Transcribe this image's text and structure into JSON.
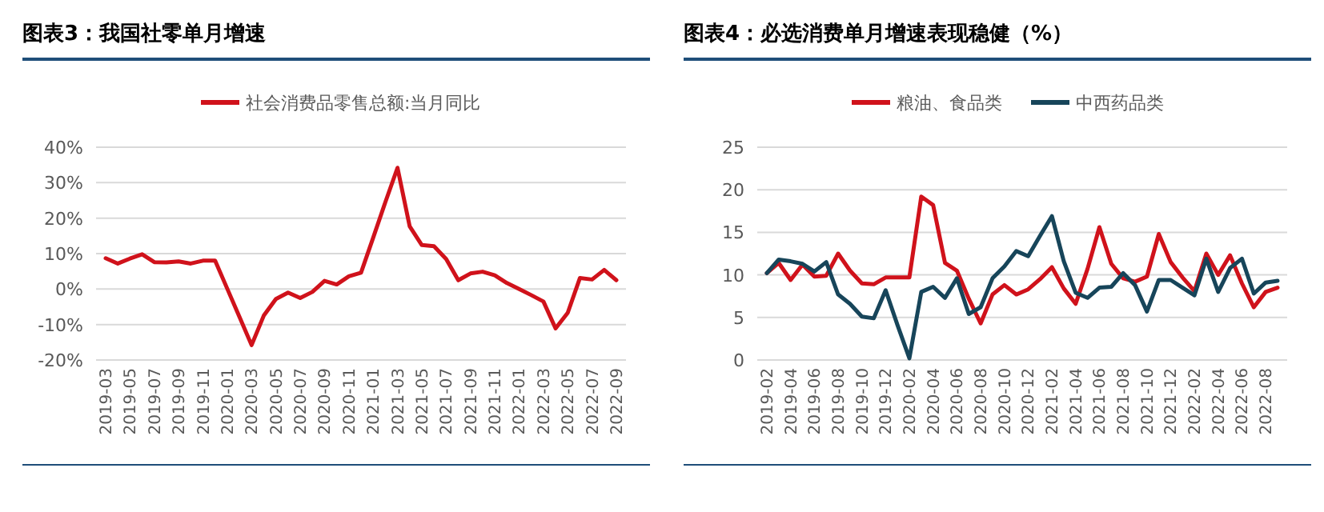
{
  "chart_data": [
    {
      "type": "line",
      "title": "图表3：我国社零单月增速",
      "categories": [
        "2019-03",
        null,
        "2019-05",
        null,
        "2019-07",
        null,
        "2019-09",
        null,
        "2019-11",
        null,
        "2020-01",
        null,
        "2020-03",
        null,
        "2020-05",
        null,
        "2020-07",
        null,
        "2020-09",
        null,
        "2020-11",
        null,
        "2021-01",
        null,
        "2021-03",
        null,
        "2021-05",
        null,
        "2021-07",
        null,
        "2021-09",
        null,
        "2021-11",
        null,
        "2022-01",
        null,
        "2022-03",
        null,
        "2022-05",
        null,
        "2022-07",
        null,
        "2022-09"
      ],
      "series": [
        {
          "name": "社会消费品零售总额:当月同比",
          "color": "#d0121b",
          "values": [
            8.7,
            7.2,
            8.6,
            9.8,
            7.6,
            7.5,
            7.8,
            7.2,
            8.0,
            8.0,
            0.1,
            -7.8,
            -15.8,
            -7.5,
            -2.8,
            -1.0,
            -2.5,
            -0.8,
            2.3,
            1.3,
            3.6,
            4.6,
            14.5,
            24.5,
            34.2,
            17.7,
            12.4,
            12.1,
            8.5,
            2.5,
            4.4,
            4.9,
            3.9,
            1.7,
            0.0,
            -1.7,
            -3.5,
            -11.1,
            -6.7,
            3.1,
            2.7,
            5.4,
            2.5
          ]
        }
      ],
      "ylim": [
        -20,
        40
      ],
      "yticks": [
        {
          "value": -20,
          "label": "-20%"
        },
        {
          "value": -10,
          "label": "-10%"
        },
        {
          "value": 0,
          "label": "0%"
        },
        {
          "value": 10,
          "label": "10%"
        },
        {
          "value": 20,
          "label": "20%"
        },
        {
          "value": 30,
          "label": "30%"
        },
        {
          "value": 40,
          "label": "40%"
        }
      ],
      "grid": "y",
      "legend": "top"
    },
    {
      "type": "line",
      "title": "图表4：必选消费单月增速表现稳健（%）",
      "categories": [
        "2019-02",
        null,
        "2019-04",
        null,
        "2019-06",
        null,
        "2019-08",
        null,
        "2019-10",
        null,
        "2019-12",
        null,
        "2020-02",
        null,
        "2020-04",
        null,
        "2020-06",
        null,
        "2020-08",
        null,
        "2020-10",
        null,
        "2020-12",
        null,
        "2021-02",
        null,
        "2021-04",
        null,
        "2021-06",
        null,
        "2021-08",
        null,
        "2021-10",
        null,
        "2021-12",
        null,
        "2022-02",
        null,
        "2022-04",
        null,
        "2022-06",
        null,
        "2022-08",
        null
      ],
      "series": [
        {
          "name": "粮油、食品类",
          "color": "#d0121b",
          "values": [
            10.2,
            11.4,
            9.4,
            11.2,
            9.8,
            9.9,
            12.5,
            10.5,
            9.0,
            8.9,
            9.7,
            9.7,
            9.7,
            19.2,
            18.2,
            11.4,
            10.5,
            7.2,
            4.3,
            7.7,
            8.8,
            7.7,
            8.3,
            9.5,
            10.9,
            8.4,
            6.6,
            10.7,
            15.6,
            11.3,
            9.6,
            9.2,
            9.8,
            14.8,
            11.5,
            9.7,
            8.1,
            12.5,
            10.0,
            12.3,
            9.0,
            6.2,
            8.0,
            8.5
          ]
        },
        {
          "name": "中西药品类",
          "color": "#17455a",
          "values": [
            10.2,
            11.8,
            11.6,
            11.3,
            10.4,
            11.5,
            7.7,
            6.6,
            5.1,
            4.9,
            8.2,
            4.1,
            0.2,
            8.0,
            8.6,
            7.3,
            9.6,
            5.4,
            6.2,
            9.6,
            11.0,
            12.8,
            12.2,
            14.6,
            16.9,
            11.6,
            7.9,
            7.3,
            8.5,
            8.6,
            10.2,
            8.8,
            5.7,
            9.4,
            9.4,
            8.5,
            7.6,
            11.9,
            8.0,
            10.8,
            11.9,
            7.8,
            9.1,
            9.3
          ]
        }
      ],
      "ylim": [
        0,
        25
      ],
      "yticks": [
        0,
        5,
        10,
        15,
        20,
        25
      ],
      "grid": "y",
      "legend": "top"
    }
  ]
}
